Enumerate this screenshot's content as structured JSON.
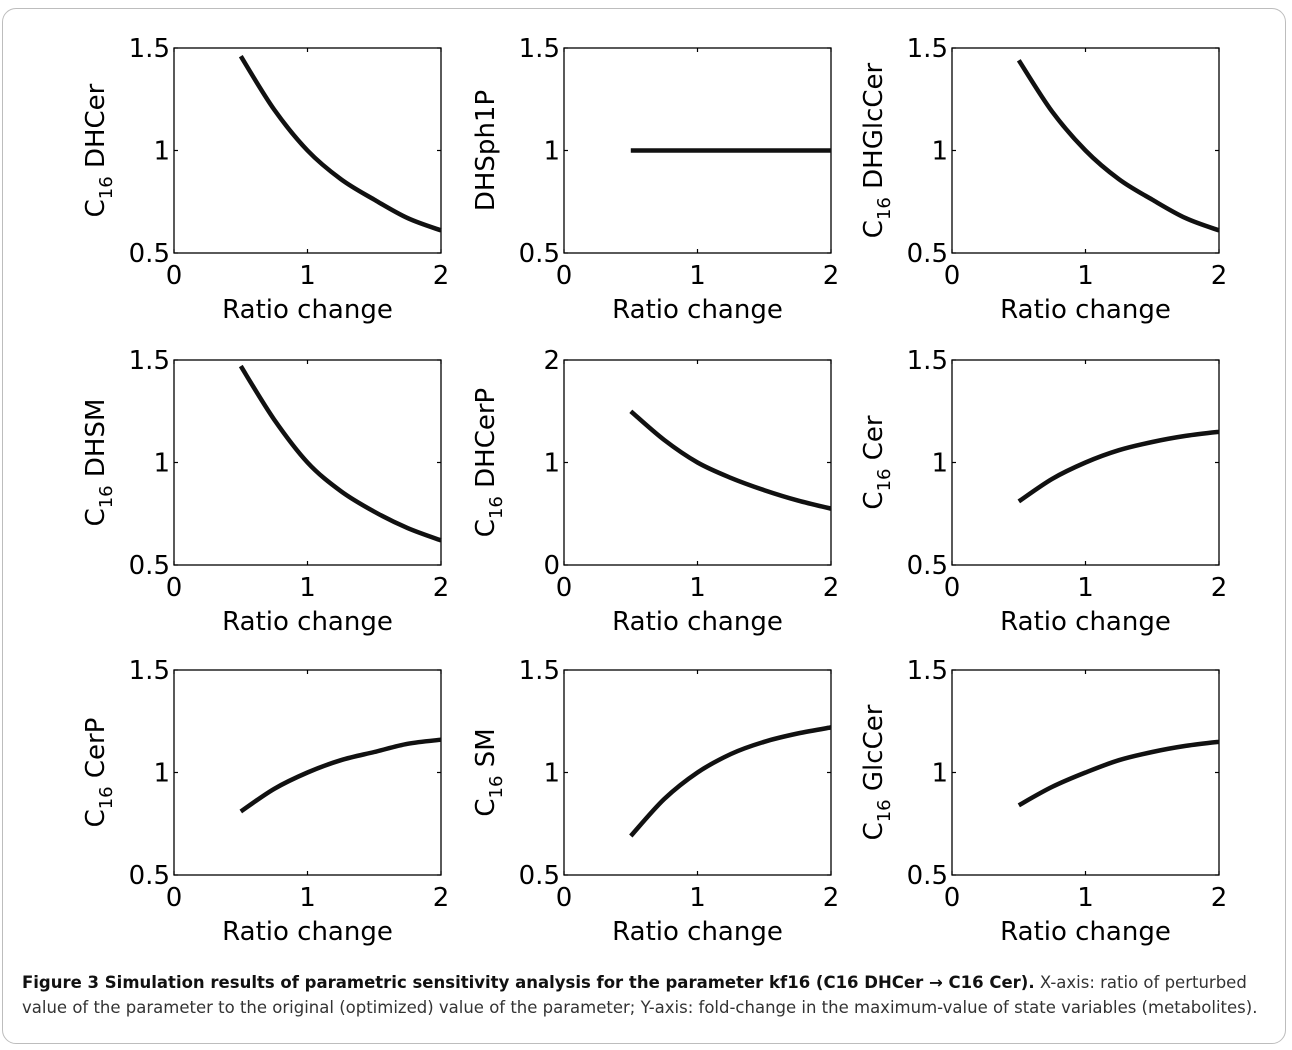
{
  "caption": {
    "title": "Figure 3 Simulation results of parametric sensitivity analysis for the parameter kf16 (C16 DHCer → C16 Cer).",
    "body": "X-axis: ratio of perturbed value of the parameter to the original (optimized) value of the parameter; Y-axis: fold-change in the maximum-value of state variables (metabolites)."
  },
  "chart_data": [
    {
      "type": "line",
      "ylabel": "C16 DHCer",
      "xlabel": "Ratio change",
      "xlim": [
        0,
        2
      ],
      "ylim": [
        0.5,
        1.5
      ],
      "xticks": [
        0,
        1,
        2
      ],
      "yticks": [
        0.5,
        1,
        1.5
      ],
      "series": [
        {
          "x": [
            0.5,
            0.75,
            1.0,
            1.25,
            1.5,
            1.75,
            2.0
          ],
          "y": [
            1.46,
            1.2,
            1.0,
            0.86,
            0.76,
            0.67,
            0.61
          ]
        }
      ]
    },
    {
      "type": "line",
      "ylabel": "DHSph1P",
      "xlabel": "Ratio change",
      "xlim": [
        0,
        2
      ],
      "ylim": [
        0.5,
        1.5
      ],
      "xticks": [
        0,
        1,
        2
      ],
      "yticks": [
        0.5,
        1,
        1.5
      ],
      "series": [
        {
          "x": [
            0.5,
            2.0
          ],
          "y": [
            1.0,
            1.0
          ]
        }
      ]
    },
    {
      "type": "line",
      "ylabel": "C16 DHGlcCer",
      "xlabel": "Ratio change",
      "xlim": [
        0,
        2
      ],
      "ylim": [
        0.5,
        1.5
      ],
      "xticks": [
        0,
        1,
        2
      ],
      "yticks": [
        0.5,
        1,
        1.5
      ],
      "series": [
        {
          "x": [
            0.5,
            0.75,
            1.0,
            1.25,
            1.5,
            1.75,
            2.0
          ],
          "y": [
            1.44,
            1.19,
            1.0,
            0.86,
            0.76,
            0.67,
            0.61
          ]
        }
      ]
    },
    {
      "type": "line",
      "ylabel": "C16 DHSM",
      "xlabel": "Ratio change",
      "xlim": [
        0,
        2
      ],
      "ylim": [
        0.5,
        1.5
      ],
      "xticks": [
        0,
        1,
        2
      ],
      "yticks": [
        0.5,
        1,
        1.5
      ],
      "series": [
        {
          "x": [
            0.5,
            0.75,
            1.0,
            1.25,
            1.5,
            1.75,
            2.0
          ],
          "y": [
            1.47,
            1.21,
            1.0,
            0.86,
            0.76,
            0.68,
            0.62
          ]
        }
      ]
    },
    {
      "type": "line",
      "ylabel": "C16 DHCerP",
      "xlabel": "Ratio change",
      "xlim": [
        0,
        2
      ],
      "ylim": [
        0,
        2
      ],
      "xticks": [
        0,
        1,
        2
      ],
      "yticks": [
        0,
        1,
        2
      ],
      "series": [
        {
          "x": [
            0.5,
            0.75,
            1.0,
            1.25,
            1.5,
            1.75,
            2.0
          ],
          "y": [
            1.5,
            1.22,
            1.0,
            0.85,
            0.73,
            0.63,
            0.55
          ]
        }
      ]
    },
    {
      "type": "line",
      "ylabel": "C16 Cer",
      "xlabel": "Ratio change",
      "xlim": [
        0,
        2
      ],
      "ylim": [
        0.5,
        1.5
      ],
      "xticks": [
        0,
        1,
        2
      ],
      "yticks": [
        0.5,
        1,
        1.5
      ],
      "series": [
        {
          "x": [
            0.5,
            0.75,
            1.0,
            1.25,
            1.5,
            1.75,
            2.0
          ],
          "y": [
            0.81,
            0.92,
            1.0,
            1.06,
            1.1,
            1.13,
            1.15
          ]
        }
      ]
    },
    {
      "type": "line",
      "ylabel": "C16 CerP",
      "xlabel": "Ratio change",
      "xlim": [
        0,
        2
      ],
      "ylim": [
        0.5,
        1.5
      ],
      "xticks": [
        0,
        1,
        2
      ],
      "yticks": [
        0.5,
        1,
        1.5
      ],
      "series": [
        {
          "x": [
            0.5,
            0.75,
            1.0,
            1.25,
            1.5,
            1.75,
            2.0
          ],
          "y": [
            0.81,
            0.92,
            1.0,
            1.06,
            1.1,
            1.14,
            1.16
          ]
        }
      ]
    },
    {
      "type": "line",
      "ylabel": "C16 SM",
      "xlabel": "Ratio change",
      "xlim": [
        0,
        2
      ],
      "ylim": [
        0.5,
        1.5
      ],
      "xticks": [
        0,
        1,
        2
      ],
      "yticks": [
        0.5,
        1,
        1.5
      ],
      "series": [
        {
          "x": [
            0.5,
            0.75,
            1.0,
            1.25,
            1.5,
            1.75,
            2.0
          ],
          "y": [
            0.69,
            0.87,
            1.0,
            1.09,
            1.15,
            1.19,
            1.22
          ]
        }
      ]
    },
    {
      "type": "line",
      "ylabel": "C16 GlcCer",
      "xlabel": "Ratio change",
      "xlim": [
        0,
        2
      ],
      "ylim": [
        0.5,
        1.5
      ],
      "xticks": [
        0,
        1,
        2
      ],
      "yticks": [
        0.5,
        1,
        1.5
      ],
      "series": [
        {
          "x": [
            0.5,
            0.75,
            1.0,
            1.25,
            1.5,
            1.75,
            2.0
          ],
          "y": [
            0.84,
            0.93,
            1.0,
            1.06,
            1.1,
            1.13,
            1.15
          ]
        }
      ]
    }
  ]
}
